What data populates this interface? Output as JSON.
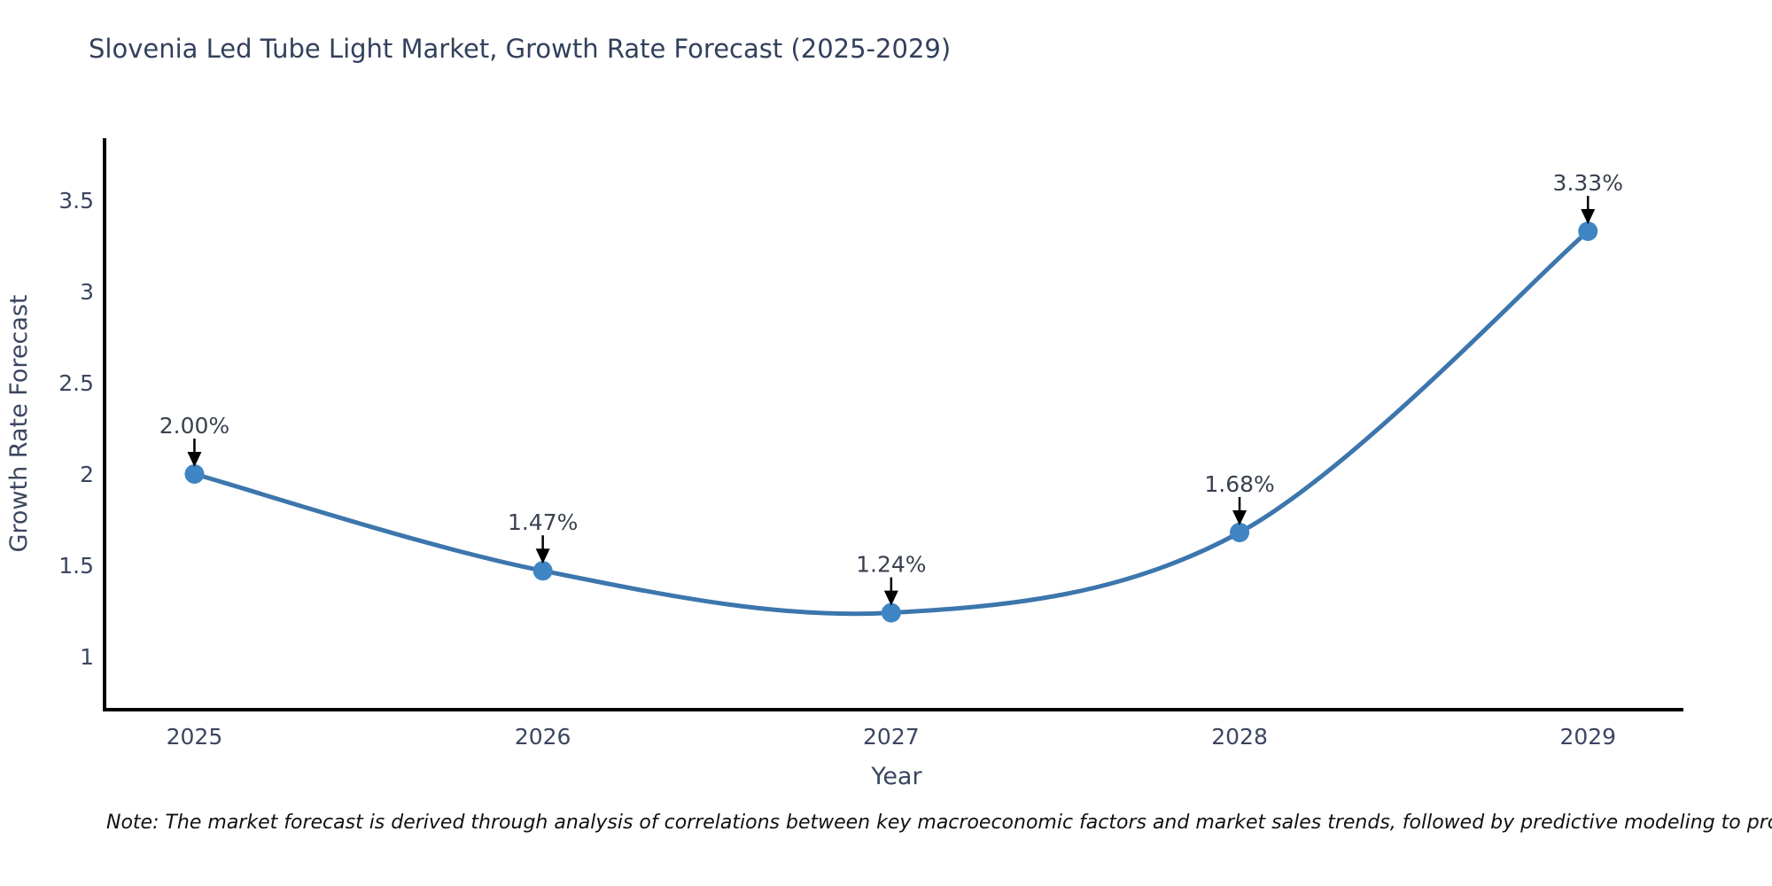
{
  "title": "Slovenia Led Tube Light Market, Growth Rate Forecast (2025-2029)",
  "note": "Note: The market forecast is derived through analysis of correlations between key macroeconomic factors and market sales trends, followed by predictive modeling to project future sales",
  "chart_data": {
    "type": "line",
    "title": "Slovenia Led Tube Light Market, Growth Rate Forecast (2025-2029)",
    "x": [
      2025,
      2026,
      2027,
      2028,
      2029
    ],
    "values": [
      2.0,
      1.47,
      1.24,
      1.68,
      3.33
    ],
    "point_labels": [
      "2.00%",
      "1.47%",
      "1.24%",
      "1.68%",
      "3.33%"
    ],
    "xlabel": "Year",
    "ylabel": "Growth Rate Forecast",
    "xticks": [
      "2025",
      "2026",
      "2027",
      "2028",
      "2029"
    ],
    "yticks": [
      "1",
      "1.5",
      "2",
      "2.5",
      "3",
      "3.5"
    ],
    "ytick_values": [
      1,
      1.5,
      2,
      2.5,
      3,
      3.5
    ],
    "xlim": [
      2024.742,
      2029.274
    ],
    "ylim": [
      0.709,
      3.83
    ],
    "grid": false,
    "legend": null,
    "smooth": true,
    "colors": {
      "line": "#3c76ad",
      "marker": "#3f85c4",
      "spine": "#000000",
      "tick_text": "#3b4660",
      "annotation_arrow": "#000000"
    }
  }
}
